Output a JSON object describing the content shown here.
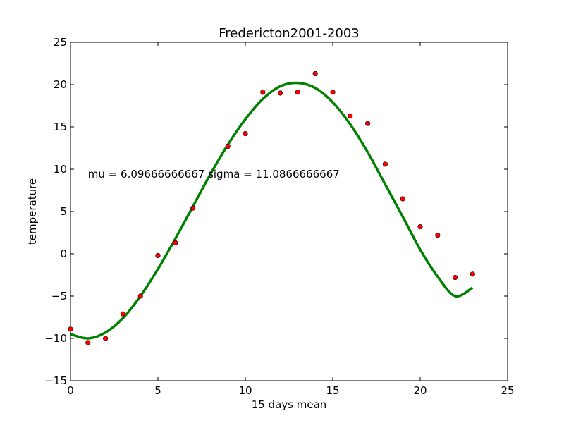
{
  "chart_data": {
    "type": "scatter",
    "title": "Fredericton2001-2003",
    "xlabel": "15 days mean",
    "ylabel": "temperature",
    "xlim": [
      0,
      25
    ],
    "ylim": [
      -15,
      25
    ],
    "xticks": [
      0,
      5,
      10,
      15,
      20,
      25
    ],
    "yticks": [
      -15,
      -10,
      -5,
      0,
      5,
      10,
      15,
      20,
      25
    ],
    "xtick_labels": [
      "0",
      "5",
      "10",
      "15",
      "20",
      "25"
    ],
    "ytick_labels": [
      "−15",
      "−10",
      "−5",
      "0",
      "5",
      "10",
      "15",
      "20",
      "25"
    ],
    "grid": false,
    "legend": "none",
    "annotation": {
      "text": "mu = 6.09666666667 sigma = 11.0866666667",
      "x": 1.0,
      "y": 9.0
    },
    "series": [
      {
        "kind": "points",
        "color": "#ff0000",
        "x": [
          0,
          1,
          2,
          3,
          4,
          5,
          6,
          7,
          9,
          10,
          11,
          12,
          13,
          14,
          15,
          16,
          17,
          18,
          19,
          20,
          21,
          22,
          23
        ],
        "y": [
          -8.9,
          -10.5,
          -10.0,
          -7.1,
          -5.0,
          -0.2,
          1.3,
          5.4,
          12.7,
          14.2,
          19.1,
          19.0,
          19.1,
          21.3,
          19.1,
          16.3,
          15.4,
          10.6,
          6.5,
          3.2,
          2.2,
          -2.8,
          -2.4
        ]
      },
      {
        "kind": "fit-curve",
        "color": "#008000",
        "x": [
          0,
          1,
          2,
          3,
          4,
          5,
          6,
          7,
          8,
          9,
          10,
          11,
          12,
          13,
          14,
          15,
          16,
          17,
          18,
          19,
          20,
          21,
          22,
          23
        ],
        "y": [
          -9.5,
          -10.0,
          -9.3,
          -7.6,
          -5.0,
          -1.8,
          1.8,
          5.6,
          9.4,
          12.9,
          15.9,
          18.3,
          19.8,
          20.2,
          19.6,
          17.9,
          15.3,
          12.0,
          8.2,
          4.4,
          0.5,
          -2.7,
          -5.0,
          -4.0
        ]
      }
    ]
  }
}
